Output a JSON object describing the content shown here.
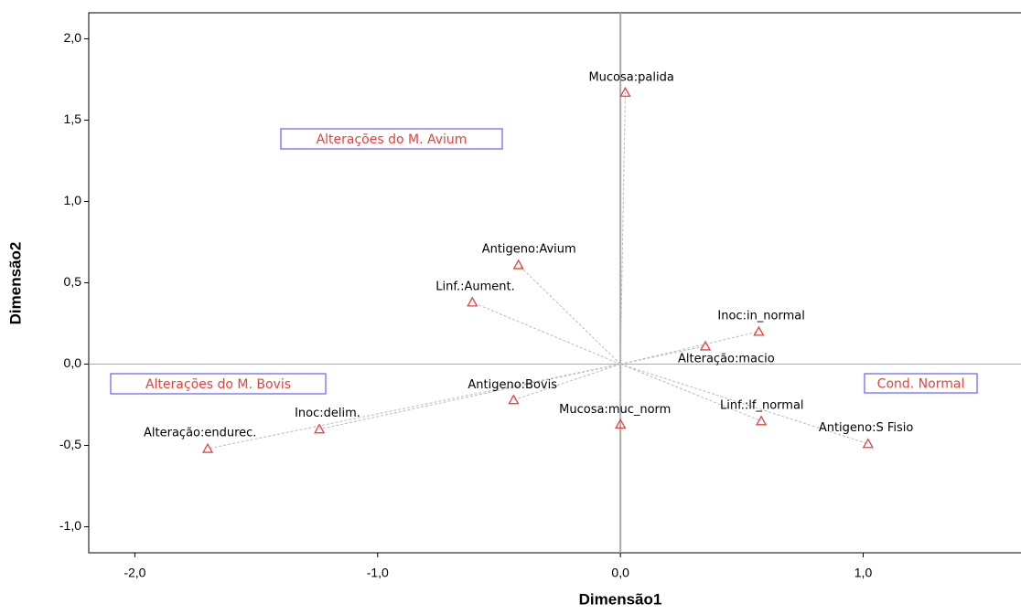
{
  "chart_data": {
    "type": "scatter",
    "labels": [
      "Mucosa:palida",
      "Antigeno:Avium",
      "Linf.:Aument.",
      "Inoc:in_normal",
      "Alteração:macio",
      "Antigeno:Bovis",
      "Mucosa:muc_norm",
      "Linf.:lf_normal",
      "Antigeno:S Fisio",
      "Inoc:delim.",
      "Alteração:endurec."
    ],
    "x": [
      0.02,
      -0.42,
      -0.61,
      0.57,
      0.35,
      -0.44,
      0.0,
      0.58,
      1.02,
      -1.24,
      -1.7
    ],
    "values": [
      1.67,
      0.61,
      0.38,
      0.2,
      0.11,
      -0.22,
      -0.37,
      -0.35,
      -0.49,
      -0.4,
      -0.52
    ],
    "color": "#e8413c",
    "xlabel": "Dimensão1",
    "ylabel": "Dimensão2",
    "xlim": [
      -2.19,
      1.65
    ],
    "ylim": [
      -1.16,
      2.16
    ],
    "xticks": [
      {
        "value": -2,
        "label": "-2,0"
      },
      {
        "value": -1,
        "label": "-1,0"
      },
      {
        "value": 0,
        "label": "0,0"
      },
      {
        "value": 1,
        "label": "1,0"
      }
    ],
    "yticks": [
      {
        "value": -1,
        "label": "-1,0"
      },
      {
        "value": -0.5,
        "label": "-0,5"
      },
      {
        "value": 0,
        "label": "0,0"
      },
      {
        "value": 0.5,
        "label": "0,5"
      },
      {
        "value": 1,
        "label": "1,0"
      },
      {
        "value": 1.5,
        "label": "1,5"
      },
      {
        "value": 2,
        "label": "2,0"
      }
    ],
    "annotations": [
      "Alterações do M. Avium",
      "Alterações do M. Bovis",
      "Cond. Normal"
    ]
  }
}
